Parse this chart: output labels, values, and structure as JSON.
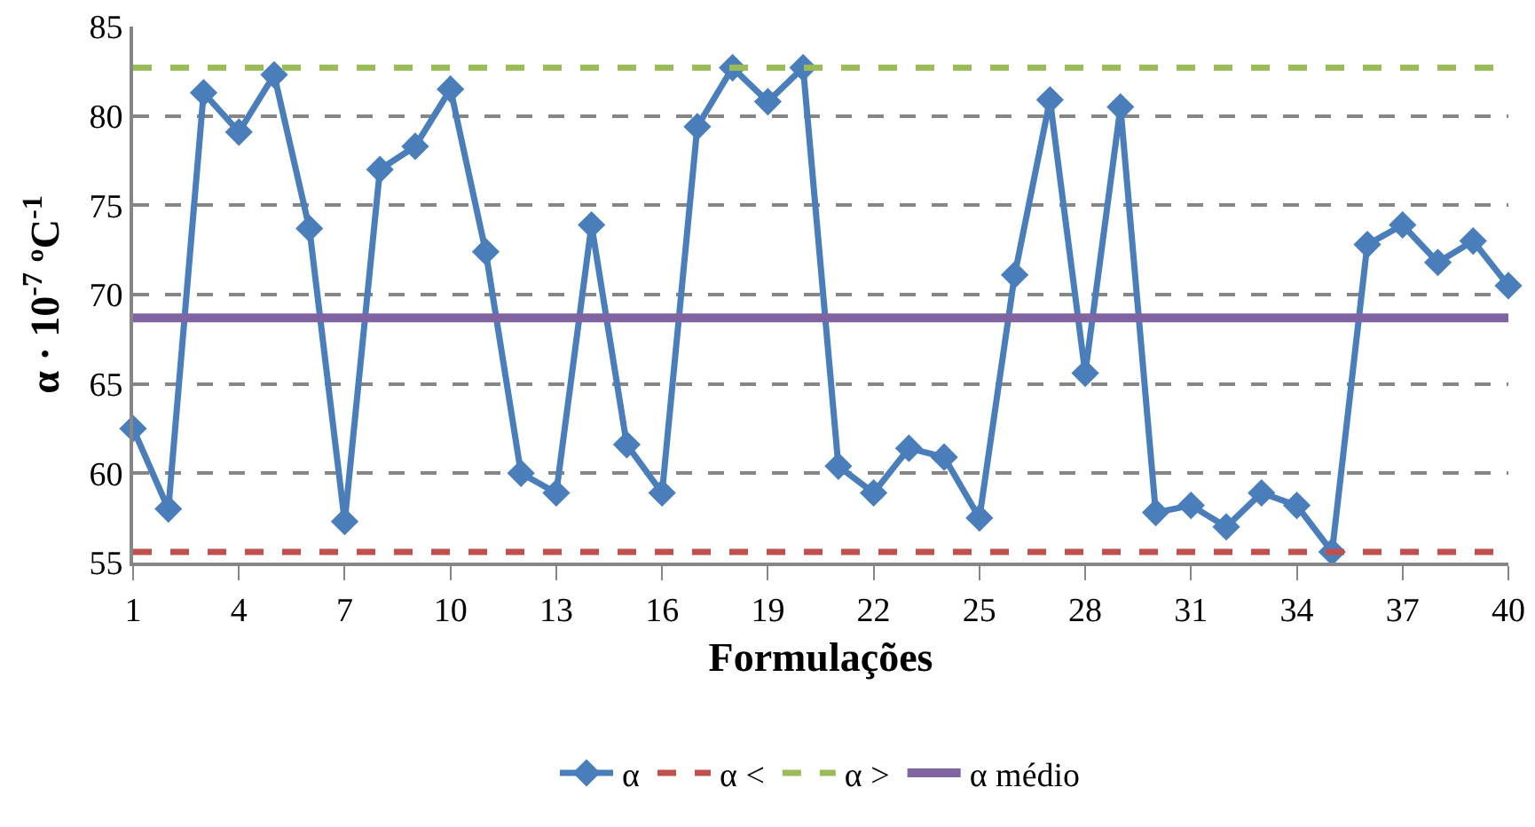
{
  "chart_data": {
    "type": "line",
    "xlabel": "Formulações",
    "ylabel": "α · 10$^{-7}$ ºC$^{-1}$",
    "x": [
      1,
      2,
      3,
      4,
      5,
      6,
      7,
      8,
      9,
      10,
      11,
      12,
      13,
      14,
      15,
      16,
      17,
      18,
      19,
      20,
      21,
      22,
      23,
      24,
      25,
      26,
      27,
      28,
      29,
      30,
      31,
      32,
      33,
      34,
      35,
      36,
      37,
      38,
      39,
      40
    ],
    "series": [
      {
        "name": "α",
        "color": "#4a7ebb",
        "marker": "diamond",
        "line_style": "solid",
        "values": [
          62.5,
          58,
          81.3,
          79.1,
          82.3,
          73.7,
          57.3,
          77,
          78.3,
          81.5,
          72.4,
          60,
          58.9,
          73.9,
          61.6,
          58.9,
          79.4,
          82.7,
          80.8,
          82.7,
          60.4,
          58.9,
          61.4,
          60.9,
          57.5,
          71.1,
          80.9,
          65.6,
          80.5,
          57.8,
          58.2,
          57,
          58.9,
          58.2,
          55.6,
          72.8,
          73.9,
          71.8,
          73,
          70.5
        ]
      }
    ],
    "ref_lines": [
      {
        "axis": "y",
        "value": 55.6,
        "label": "α <",
        "color": "#c0504d",
        "line_style": "dashed"
      },
      {
        "axis": "y",
        "value": 82.7,
        "label": "α >",
        "color": "#9bbb59",
        "line_style": "dashed"
      },
      {
        "axis": "y",
        "value": 68.7,
        "label": "α médio",
        "color": "#8064a2",
        "line_style": "solid"
      }
    ],
    "xlim": [
      1,
      40
    ],
    "xticks": [
      1,
      4,
      7,
      10,
      13,
      16,
      19,
      22,
      25,
      28,
      31,
      34,
      37,
      40
    ],
    "ylim": [
      55,
      85
    ],
    "yticks": [
      55,
      60,
      65,
      70,
      75,
      80,
      85
    ],
    "grid": "y",
    "legend": "bottom"
  }
}
